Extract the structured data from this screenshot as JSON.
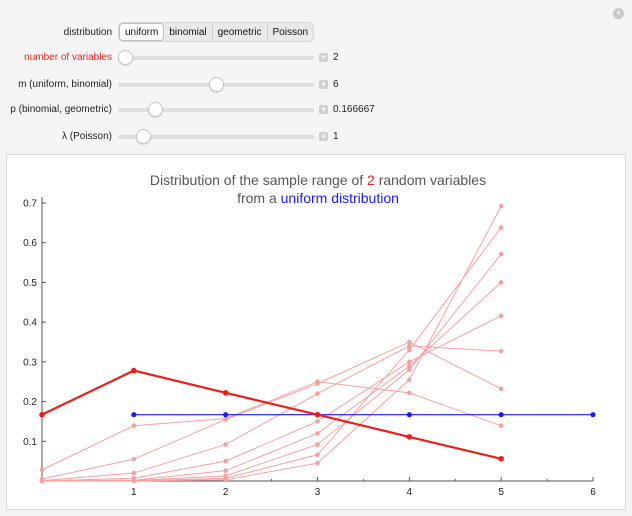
{
  "controls": {
    "distribution": {
      "label": "distribution",
      "options": [
        "uniform",
        "binomial",
        "geometric",
        "Poisson"
      ],
      "selected": "uniform"
    },
    "num_vars": {
      "label": "number of variables",
      "value": "2",
      "fraction": 0.0
    },
    "m": {
      "label": "m (uniform, binomial)",
      "value": "6",
      "fraction": 0.5
    },
    "p": {
      "label": "p (binomial, geometric)",
      "value": "0.166667",
      "fraction": 0.1667
    },
    "lambda": {
      "label": "λ (Poisson)",
      "value": "1",
      "fraction": 0.1
    },
    "plus_symbol": "+",
    "gear_symbol": "+"
  },
  "title": {
    "part1": "Distribution of the sample range of ",
    "n": "2",
    "part2": " random variables",
    "line2_prefix": "from a ",
    "line2_dist": "uniform distribution"
  },
  "colors": {
    "highlight": "#e8201a",
    "faint": "#f5a0a0",
    "uniform": "#1a1aff",
    "axis": "#555555"
  },
  "chart_data": {
    "type": "line",
    "xlim": [
      0,
      6
    ],
    "ylim": [
      0,
      0.7
    ],
    "x_ticks": [
      "1",
      "2",
      "3",
      "4",
      "5",
      "6"
    ],
    "y_ticks": [
      "0.1",
      "0.2",
      "0.3",
      "0.4",
      "0.5",
      "0.6",
      "0.7"
    ],
    "x_tick_values": [
      1,
      2,
      3,
      4,
      5,
      6
    ],
    "y_tick_values": [
      0.1,
      0.2,
      0.3,
      0.4,
      0.5,
      0.6,
      0.7
    ],
    "highlight_series": {
      "x": [
        0,
        1,
        2,
        3,
        4,
        5
      ],
      "y": [
        0.167,
        0.278,
        0.222,
        0.167,
        0.111,
        0.056
      ]
    },
    "uniform_series": {
      "x": [
        1,
        2,
        3,
        4,
        5,
        6
      ],
      "y": [
        0.167,
        0.167,
        0.167,
        0.167,
        0.167,
        0.167
      ]
    },
    "background_series": [
      {
        "x": [
          0,
          1,
          2,
          3,
          4,
          5
        ],
        "y": [
          0.028,
          0.139,
          0.157,
          0.25,
          0.222,
          0.139
        ]
      },
      {
        "x": [
          0,
          1,
          2,
          3,
          4,
          5
        ],
        "y": [
          0.005,
          0.055,
          0.155,
          0.245,
          0.35,
          0.232
        ]
      },
      {
        "x": [
          0,
          1,
          2,
          3,
          4,
          5
        ],
        "y": [
          0.001,
          0.02,
          0.092,
          0.22,
          0.34,
          0.327
        ]
      },
      {
        "x": [
          0,
          1,
          2,
          3,
          4,
          5
        ],
        "y": [
          0.0,
          0.007,
          0.05,
          0.15,
          0.3,
          0.416
        ]
      },
      {
        "x": [
          0,
          1,
          2,
          3,
          4,
          5
        ],
        "y": [
          0.0,
          0.002,
          0.026,
          0.12,
          0.289,
          0.5
        ]
      },
      {
        "x": [
          0,
          1,
          2,
          3,
          4,
          5
        ],
        "y": [
          0.0,
          0.001,
          0.013,
          0.092,
          0.28,
          0.571
        ]
      },
      {
        "x": [
          0,
          1,
          2,
          3,
          4,
          5
        ],
        "y": [
          0.0,
          0.0,
          0.007,
          0.066,
          0.33,
          0.638
        ]
      },
      {
        "x": [
          0,
          1,
          2,
          3,
          4,
          5
        ],
        "y": [
          0.0,
          0.0,
          0.003,
          0.045,
          0.255,
          0.692
        ]
      }
    ]
  }
}
